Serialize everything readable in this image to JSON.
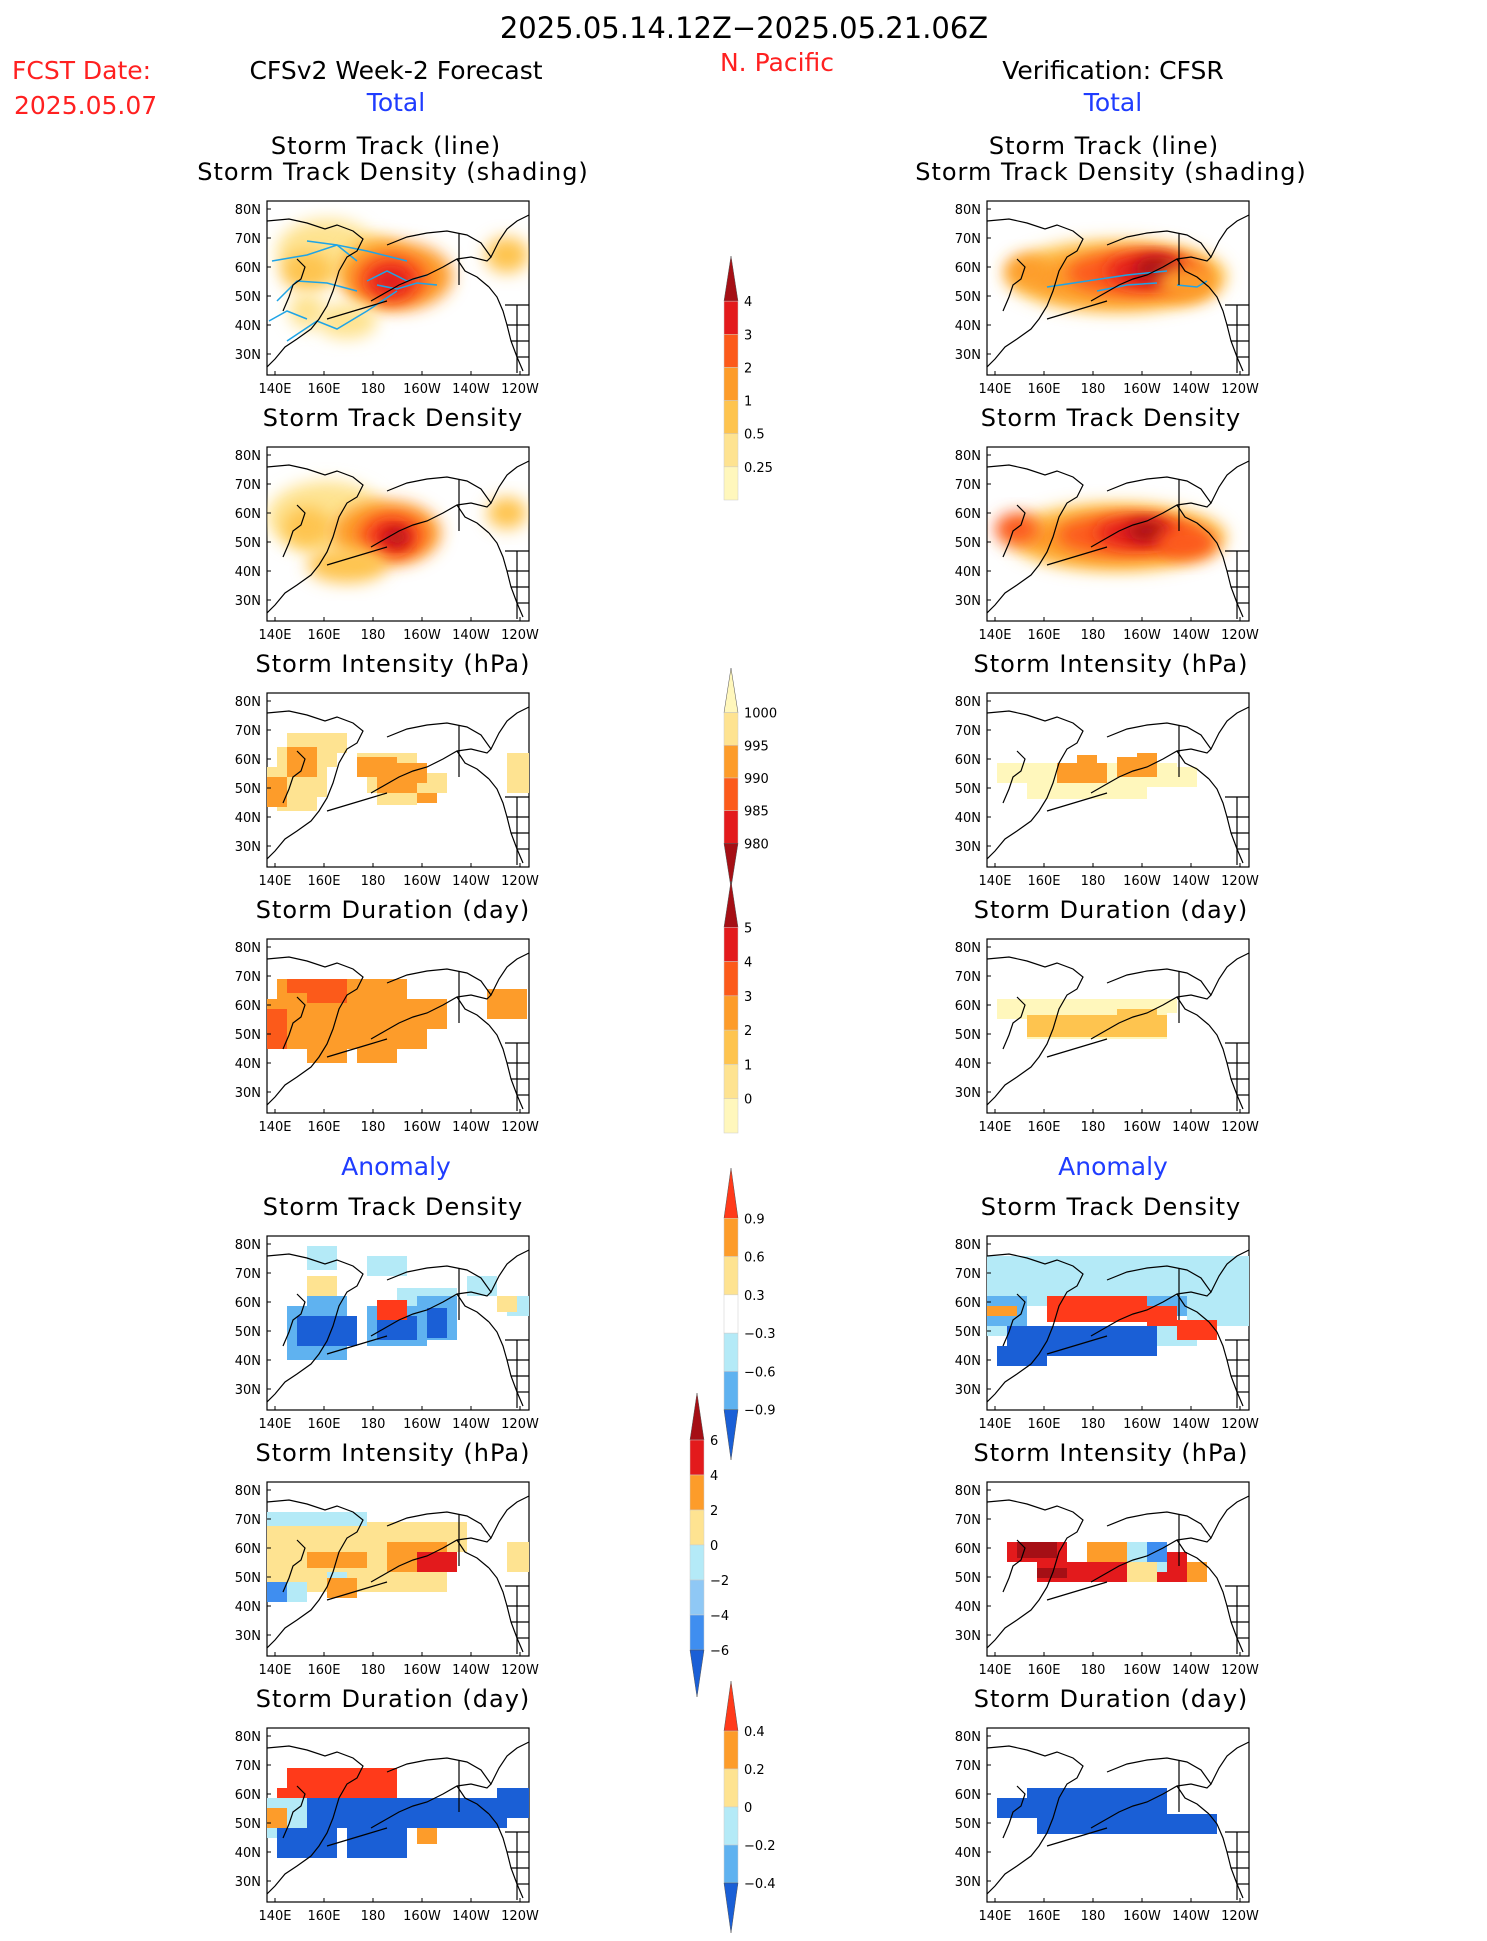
{
  "header": {
    "period": "2025.05.14.12Z−2025.05.21.06Z",
    "region": "N. Pacific",
    "fcst_label": "FCST Date:",
    "fcst_date": "2025.05.07",
    "left_title": "CFSv2 Week-2 Forecast",
    "right_title": "Verification: CFSR",
    "total_label": "Total",
    "anomaly_label": "Anomaly"
  },
  "axes": {
    "lat_labels": [
      "80N",
      "70N",
      "60N",
      "50N",
      "40N",
      "30N"
    ],
    "lon_labels": [
      "140E",
      "160E",
      "180",
      "160W",
      "140W",
      "120W"
    ]
  },
  "panel_titles": {
    "track_line": "Storm Track (line)",
    "track_shading": "Storm Track Density (shading)",
    "track_density": "Storm Track Density",
    "intensity": "Storm Intensity (hPa)",
    "duration": "Storm Duration (day)"
  },
  "colorbars": [
    {
      "name": "density",
      "labels": [
        "4",
        "3",
        "2",
        "1",
        "0.5",
        "0.25"
      ],
      "colors": [
        "#a50f15",
        "#e31a1c",
        "#fc5a1a",
        "#fd9c2a",
        "#fec44f",
        "#fee391",
        "#fff7bc"
      ]
    },
    {
      "name": "intensity",
      "labels": [
        "1000",
        "995",
        "990",
        "985",
        "980"
      ],
      "colors": [
        "#fff7bc",
        "#fee391",
        "#fd9c2a",
        "#fc5a1a",
        "#e31a1c",
        "#a50f15"
      ]
    },
    {
      "name": "duration",
      "labels": [
        "5",
        "4",
        "3",
        "2",
        "1",
        "0"
      ],
      "colors": [
        "#a50f15",
        "#e31a1c",
        "#fc5a1a",
        "#fd9c2a",
        "#fec44f",
        "#fee391",
        "#fff7bc"
      ]
    },
    {
      "name": "density_anom",
      "labels": [
        "0.9",
        "0.6",
        "0.3",
        "−0.3",
        "−0.6",
        "−0.9"
      ],
      "colors": [
        "#ff3a1a",
        "#fd9c2a",
        "#fee391",
        "#ffffff",
        "#b4eaf7",
        "#5fb2f0",
        "#1a5fd6"
      ]
    },
    {
      "name": "intensity_anom",
      "labels": [
        "6",
        "4",
        "2",
        "0",
        "−2",
        "−4",
        "−6"
      ],
      "colors": [
        "#a50f15",
        "#e31a1c",
        "#fd9c2a",
        "#fee391",
        "#b4eaf7",
        "#8fc8f5",
        "#3f8ef0",
        "#1a5fd6"
      ]
    },
    {
      "name": "duration_anom",
      "labels": [
        "0.4",
        "0.2",
        "0",
        "−0.2",
        "−0.4"
      ],
      "colors": [
        "#ff3a1a",
        "#fd9c2a",
        "#fee391",
        "#b4eaf7",
        "#5fb2f0",
        "#1a5fd6"
      ]
    }
  ]
}
